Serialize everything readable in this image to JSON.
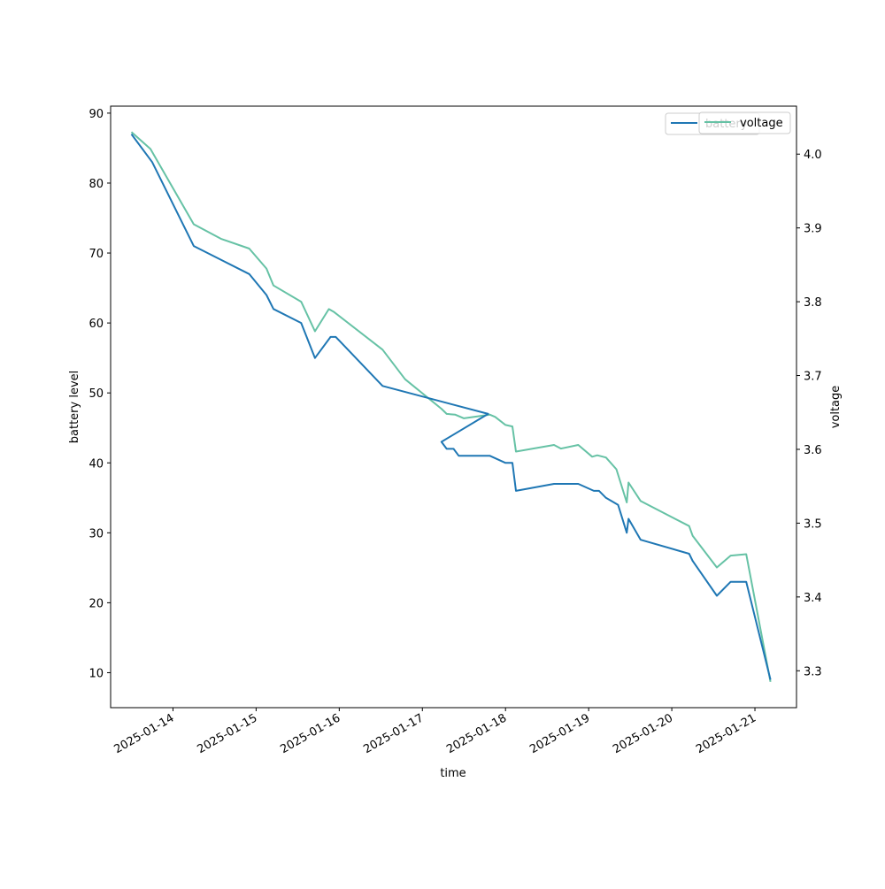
{
  "chart_data": {
    "type": "line",
    "xlabel": "time",
    "ylabel_left": "battery level",
    "ylabel_right": "voltage",
    "x_tick_labels": [
      "2025-01-14",
      "2025-01-15",
      "2025-01-16",
      "2025-01-17",
      "2025-01-18",
      "2025-01-19",
      "2025-01-20",
      "2025-01-21"
    ],
    "xlim": [
      "2025-01-13T06:00",
      "2025-01-21T12:00"
    ],
    "ylim_left": [
      5,
      91
    ],
    "yticks_left": [
      10,
      20,
      30,
      40,
      50,
      60,
      70,
      80,
      90
    ],
    "ylim_right": [
      3.25,
      4.065
    ],
    "yticks_right": [
      3.3,
      3.4,
      3.5,
      3.6,
      3.7,
      3.8,
      3.9,
      4.0
    ],
    "legend_position": "top-right",
    "grid": false,
    "series": [
      {
        "name": "battery",
        "axis": "left",
        "color": "#1f77b4",
        "points": [
          [
            "2025-01-13T12:00",
            87
          ],
          [
            "2025-01-13T18:00",
            83
          ],
          [
            "2025-01-14T06:00",
            71
          ],
          [
            "2025-01-14T14:00",
            69
          ],
          [
            "2025-01-14T22:00",
            67
          ],
          [
            "2025-01-15T03:00",
            64
          ],
          [
            "2025-01-15T05:00",
            62
          ],
          [
            "2025-01-15T13:00",
            60
          ],
          [
            "2025-01-15T17:00",
            55
          ],
          [
            "2025-01-15T21:30",
            58
          ],
          [
            "2025-01-15T23:00",
            58
          ],
          [
            "2025-01-16T12:30",
            51
          ],
          [
            "2025-01-17T19:00",
            47
          ],
          [
            "2025-01-17T05:30",
            43
          ],
          [
            "2025-01-17T07:00",
            42
          ],
          [
            "2025-01-17T09:00",
            42
          ],
          [
            "2025-01-17T10:30",
            41
          ],
          [
            "2025-01-17T19:30",
            41
          ],
          [
            "2025-01-18T00:00",
            40
          ],
          [
            "2025-01-18T02:00",
            40
          ],
          [
            "2025-01-18T03:00",
            36
          ],
          [
            "2025-01-18T14:00",
            37
          ],
          [
            "2025-01-18T21:00",
            37
          ],
          [
            "2025-01-19T01:30",
            36
          ],
          [
            "2025-01-19T03:00",
            36
          ],
          [
            "2025-01-19T05:00",
            35
          ],
          [
            "2025-01-19T08:30",
            34
          ],
          [
            "2025-01-19T11:00",
            30
          ],
          [
            "2025-01-19T11:30",
            32
          ],
          [
            "2025-01-19T15:00",
            29
          ],
          [
            "2025-01-20T05:00",
            27
          ],
          [
            "2025-01-20T06:00",
            26
          ],
          [
            "2025-01-20T13:00",
            21
          ],
          [
            "2025-01-20T17:00",
            23
          ],
          [
            "2025-01-20T21:30",
            23
          ],
          [
            "2025-01-21T04:30",
            9
          ]
        ]
      },
      {
        "name": "voltage",
        "axis": "right",
        "color": "#66c2a5",
        "points": [
          [
            "2025-01-13T12:00",
            4.03
          ],
          [
            "2025-01-13T17:30",
            4.007
          ],
          [
            "2025-01-14T06:00",
            3.905
          ],
          [
            "2025-01-14T14:00",
            3.885
          ],
          [
            "2025-01-14T22:00",
            3.872
          ],
          [
            "2025-01-15T03:00",
            3.845
          ],
          [
            "2025-01-15T05:00",
            3.822
          ],
          [
            "2025-01-15T13:00",
            3.8
          ],
          [
            "2025-01-15T17:00",
            3.76
          ],
          [
            "2025-01-15T21:00",
            3.79
          ],
          [
            "2025-01-15T22:30",
            3.786
          ],
          [
            "2025-01-16T12:30",
            3.735
          ],
          [
            "2025-01-16T19:00",
            3.695
          ],
          [
            "2025-01-17T05:30",
            3.655
          ],
          [
            "2025-01-17T07:00",
            3.648
          ],
          [
            "2025-01-17T09:30",
            3.647
          ],
          [
            "2025-01-17T12:00",
            3.642
          ],
          [
            "2025-01-17T19:30",
            3.647
          ],
          [
            "2025-01-17T21:00",
            3.644
          ],
          [
            "2025-01-18T00:00",
            3.633
          ],
          [
            "2025-01-18T02:00",
            3.631
          ],
          [
            "2025-01-18T03:00",
            3.597
          ],
          [
            "2025-01-18T14:00",
            3.606
          ],
          [
            "2025-01-18T16:00",
            3.601
          ],
          [
            "2025-01-18T21:00",
            3.606
          ],
          [
            "2025-01-19T01:00",
            3.59
          ],
          [
            "2025-01-19T02:30",
            3.592
          ],
          [
            "2025-01-19T05:00",
            3.589
          ],
          [
            "2025-01-19T08:00",
            3.573
          ],
          [
            "2025-01-19T11:00",
            3.528
          ],
          [
            "2025-01-19T11:30",
            3.555
          ],
          [
            "2025-01-19T15:00",
            3.53
          ],
          [
            "2025-01-20T05:00",
            3.496
          ],
          [
            "2025-01-20T06:00",
            3.483
          ],
          [
            "2025-01-20T13:00",
            3.44
          ],
          [
            "2025-01-20T17:00",
            3.456
          ],
          [
            "2025-01-20T21:30",
            3.458
          ],
          [
            "2025-01-21T04:30",
            3.285
          ]
        ]
      }
    ]
  }
}
